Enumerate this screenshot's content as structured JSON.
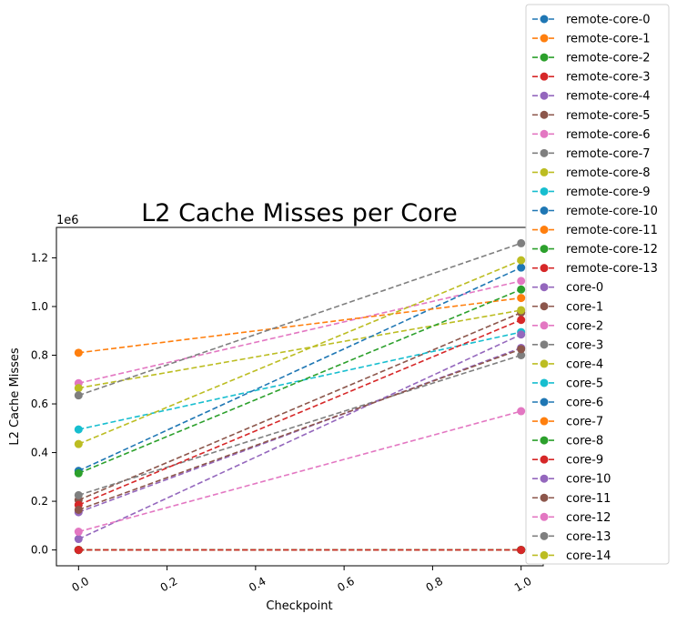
{
  "chart_data": {
    "type": "line",
    "title": "L2 Cache Misses per Core",
    "xlabel": "Checkpoint",
    "ylabel": "L2 Cache Misses",
    "y_scale_label": "1e6",
    "x_ticks": [
      "0.0",
      "0.2",
      "0.4",
      "0.6",
      "0.8",
      "1.0"
    ],
    "y_ticks": [
      "0.0",
      "0.2",
      "0.4",
      "0.6",
      "0.8",
      "1.0",
      "1.2"
    ],
    "xlim": [
      -0.05,
      1.05
    ],
    "ylim": [
      -65000,
      1325000
    ],
    "x": [
      0.0,
      1.0
    ],
    "grid": false,
    "legend_position": "outside-right",
    "line_style": "dashed",
    "marker": "circle",
    "series": [
      {
        "name": "remote-core-0",
        "color": "#1f77b4",
        "values": [
          0,
          0
        ]
      },
      {
        "name": "remote-core-1",
        "color": "#ff7f0e",
        "values": [
          0,
          0
        ]
      },
      {
        "name": "remote-core-2",
        "color": "#2ca02c",
        "values": [
          0,
          0
        ]
      },
      {
        "name": "remote-core-3",
        "color": "#d62728",
        "values": [
          0,
          0
        ]
      },
      {
        "name": "remote-core-4",
        "color": "#9467bd",
        "values": [
          0,
          0
        ]
      },
      {
        "name": "remote-core-5",
        "color": "#8c564b",
        "values": [
          0,
          0
        ]
      },
      {
        "name": "remote-core-6",
        "color": "#e377c2",
        "values": [
          0,
          0
        ]
      },
      {
        "name": "remote-core-7",
        "color": "#7f7f7f",
        "values": [
          0,
          0
        ]
      },
      {
        "name": "remote-core-8",
        "color": "#bcbd22",
        "values": [
          0,
          0
        ]
      },
      {
        "name": "remote-core-9",
        "color": "#17becf",
        "values": [
          0,
          0
        ]
      },
      {
        "name": "remote-core-10",
        "color": "#1f77b4",
        "values": [
          0,
          0
        ]
      },
      {
        "name": "remote-core-11",
        "color": "#ff7f0e",
        "values": [
          0,
          0
        ]
      },
      {
        "name": "remote-core-12",
        "color": "#2ca02c",
        "values": [
          0,
          0
        ]
      },
      {
        "name": "remote-core-13",
        "color": "#d62728",
        "values": [
          0,
          0
        ]
      },
      {
        "name": "core-0",
        "color": "#9467bd",
        "values": [
          155000,
          830000
        ]
      },
      {
        "name": "core-1",
        "color": "#8c564b",
        "values": [
          205000,
          975000
        ]
      },
      {
        "name": "core-2",
        "color": "#e377c2",
        "values": [
          685000,
          1105000
        ]
      },
      {
        "name": "core-3",
        "color": "#7f7f7f",
        "values": [
          225000,
          800000
        ]
      },
      {
        "name": "core-4",
        "color": "#bcbd22",
        "values": [
          665000,
          985000
        ]
      },
      {
        "name": "core-5",
        "color": "#17becf",
        "values": [
          495000,
          895000
        ]
      },
      {
        "name": "core-6",
        "color": "#1f77b4",
        "values": [
          325000,
          1160000
        ]
      },
      {
        "name": "core-7",
        "color": "#ff7f0e",
        "values": [
          810000,
          1035000
        ]
      },
      {
        "name": "core-8",
        "color": "#2ca02c",
        "values": [
          315000,
          1070000
        ]
      },
      {
        "name": "core-9",
        "color": "#d62728",
        "values": [
          185000,
          945000
        ]
      },
      {
        "name": "core-10",
        "color": "#9467bd",
        "values": [
          45000,
          885000
        ]
      },
      {
        "name": "core-11",
        "color": "#8c564b",
        "values": [
          165000,
          825000
        ]
      },
      {
        "name": "core-12",
        "color": "#e377c2",
        "values": [
          75000,
          570000
        ]
      },
      {
        "name": "core-13",
        "color": "#7f7f7f",
        "values": [
          635000,
          1260000
        ]
      },
      {
        "name": "core-14",
        "color": "#bcbd22",
        "values": [
          435000,
          1190000
        ]
      }
    ]
  }
}
